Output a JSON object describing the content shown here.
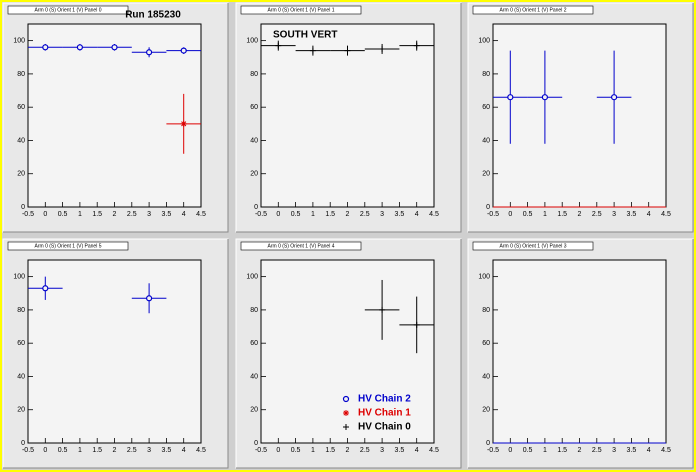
{
  "chart_data": [
    {
      "type": "errorbar",
      "title": "Arm 0 (S) Orient 1 (V) Panel 0",
      "annotation": "Run 185230",
      "xlim": [
        -0.5,
        4.5
      ],
      "xticks": [
        -0.5,
        0,
        0.5,
        1,
        1.5,
        2,
        2.5,
        3,
        3.5,
        4,
        4.5
      ],
      "ylim": [
        0,
        110
      ],
      "yticks": [
        0,
        20,
        40,
        60,
        80,
        100
      ],
      "series": [
        {
          "color": "#0000cc",
          "marker": "circle",
          "x": [
            0,
            1,
            2,
            3,
            4
          ],
          "values": [
            96,
            96,
            96,
            93,
            94
          ],
          "errors": [
            2,
            2,
            2,
            3,
            2
          ],
          "xerr": [
            0.5,
            0.5,
            0.5,
            0.5,
            0.5
          ]
        },
        {
          "color": "#dd0000",
          "marker": "star",
          "x": [
            4
          ],
          "values": [
            50
          ],
          "errors": [
            18
          ],
          "xerr": [
            0.5
          ]
        }
      ]
    },
    {
      "type": "errorbar",
      "title": "Arm 0 (S) Orient 1 (V) Panel 1",
      "annotation": "SOUTH VERT",
      "xlim": [
        -0.5,
        4.5
      ],
      "xticks": [
        -0.5,
        0,
        0.5,
        1,
        1.5,
        2,
        2.5,
        3,
        3.5,
        4,
        4.5
      ],
      "ylim": [
        0,
        110
      ],
      "yticks": [
        0,
        20,
        40,
        60,
        80,
        100
      ],
      "series": [
        {
          "color": "#000000",
          "marker": "plus",
          "x": [
            0,
            1,
            2,
            3,
            4
          ],
          "values": [
            97,
            94,
            94,
            95,
            97
          ],
          "errors": [
            3,
            3,
            3,
            3,
            3
          ],
          "xerr": [
            0.5,
            0.5,
            0.5,
            0.5,
            0.5
          ]
        }
      ]
    },
    {
      "type": "errorbar",
      "title": "Arm 0 (S) Orient 1 (V) Panel 2",
      "xlim": [
        -0.5,
        4.5
      ],
      "xticks": [
        -0.5,
        0,
        0.5,
        1,
        1.5,
        2,
        2.5,
        3,
        3.5,
        4,
        4.5
      ],
      "ylim": [
        0,
        110
      ],
      "yticks": [
        0,
        20,
        40,
        60,
        80,
        100
      ],
      "series": [
        {
          "color": "#0000cc",
          "marker": "circle",
          "x": [
            0,
            1,
            3
          ],
          "values": [
            66,
            66,
            66
          ],
          "errors": [
            28,
            28,
            28
          ],
          "xerr": [
            0.5,
            0.5,
            0.5
          ]
        },
        {
          "color": "#dd0000",
          "marker": "none",
          "x": [
            0,
            1,
            2,
            3,
            4
          ],
          "values": [
            0,
            0,
            0,
            0,
            0
          ],
          "errors": [
            0,
            0,
            0,
            0,
            0
          ],
          "xerr": [
            0.5,
            0.5,
            0.5,
            0.5,
            0.5
          ]
        }
      ]
    },
    {
      "type": "errorbar",
      "title": "Arm 0 (S) Orient 1 (V) Panel 5",
      "xlim": [
        -0.5,
        4.5
      ],
      "xticks": [
        -0.5,
        0,
        0.5,
        1,
        1.5,
        2,
        2.5,
        3,
        3.5,
        4,
        4.5
      ],
      "ylim": [
        0,
        110
      ],
      "yticks": [
        0,
        20,
        40,
        60,
        80,
        100
      ],
      "series": [
        {
          "color": "#0000cc",
          "marker": "circle",
          "x": [
            0,
            3
          ],
          "values": [
            93,
            87
          ],
          "errors": [
            7,
            9
          ],
          "xerr": [
            0.5,
            0.5
          ]
        }
      ]
    },
    {
      "type": "errorbar",
      "title": "Arm 0 (S) Orient 1 (V) Panel 4",
      "xlim": [
        -0.5,
        4.5
      ],
      "xticks": [
        -0.5,
        0,
        0.5,
        1,
        1.5,
        2,
        2.5,
        3,
        3.5,
        4,
        4.5
      ],
      "ylim": [
        0,
        110
      ],
      "yticks": [
        0,
        20,
        40,
        60,
        80,
        100
      ],
      "series": [
        {
          "name": "HV Chain 2",
          "color": "#0000cc",
          "marker": "circle",
          "x": [],
          "values": [],
          "errors": [],
          "xerr": []
        },
        {
          "name": "HV Chain 1",
          "color": "#dd0000",
          "marker": "star",
          "x": [],
          "values": [],
          "errors": [],
          "xerr": []
        },
        {
          "name": "HV Chain 0",
          "color": "#000000",
          "marker": "plus",
          "x": [
            3,
            4
          ],
          "values": [
            80,
            71
          ],
          "errors": [
            18,
            17
          ],
          "xerr": [
            0.5,
            0.5
          ]
        }
      ]
    },
    {
      "type": "errorbar",
      "title": "Arm 0 (S) Orient 1 (V) Panel 3",
      "xlim": [
        -0.5,
        4.5
      ],
      "xticks": [
        -0.5,
        0,
        0.5,
        1,
        1.5,
        2,
        2.5,
        3,
        3.5,
        4,
        4.5
      ],
      "ylim": [
        0,
        110
      ],
      "yticks": [
        0,
        20,
        40,
        60,
        80,
        100
      ],
      "series": [
        {
          "color": "#0000cc",
          "marker": "none",
          "x": [
            0,
            1,
            2,
            3,
            4
          ],
          "values": [
            0,
            0,
            0,
            0,
            0
          ],
          "errors": [
            0,
            0,
            0,
            0,
            0
          ],
          "xerr": [
            0.5,
            0.5,
            0.5,
            0.5,
            0.5
          ]
        }
      ]
    }
  ]
}
